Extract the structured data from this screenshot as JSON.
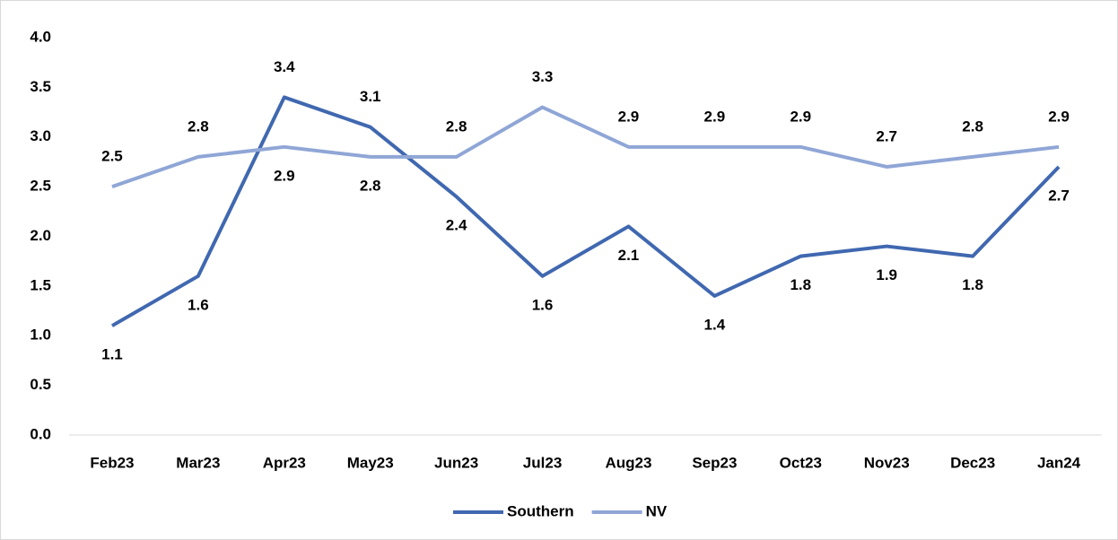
{
  "chart_data": {
    "type": "line",
    "categories": [
      "Feb23",
      "Mar23",
      "Apr23",
      "May23",
      "Jun23",
      "Jul23",
      "Aug23",
      "Sep23",
      "Oct23",
      "Nov23",
      "Dec23",
      "Jan24"
    ],
    "series": [
      {
        "name": "Southern",
        "color": "#4068b0",
        "values": [
          1.1,
          1.6,
          3.4,
          3.1,
          2.4,
          1.6,
          2.1,
          1.4,
          1.8,
          1.9,
          1.8,
          2.7
        ]
      },
      {
        "name": "NV",
        "color": "#8fa6d6",
        "values": [
          2.5,
          2.8,
          2.9,
          2.8,
          2.8,
          3.3,
          2.9,
          2.9,
          2.9,
          2.7,
          2.8,
          2.9
        ]
      }
    ],
    "ylim": [
      0,
      4
    ],
    "yticks": [
      {
        "value": 0,
        "label": "0.0"
      },
      0.5,
      {
        "value": 1,
        "label": "1.0"
      },
      1.5,
      {
        "value": 2,
        "label": "2.0"
      },
      2.5,
      {
        "value": 3,
        "label": "3.0"
      },
      3.5,
      {
        "value": 4,
        "label": "4.0"
      }
    ],
    "grid": false,
    "legend": "bottom"
  }
}
